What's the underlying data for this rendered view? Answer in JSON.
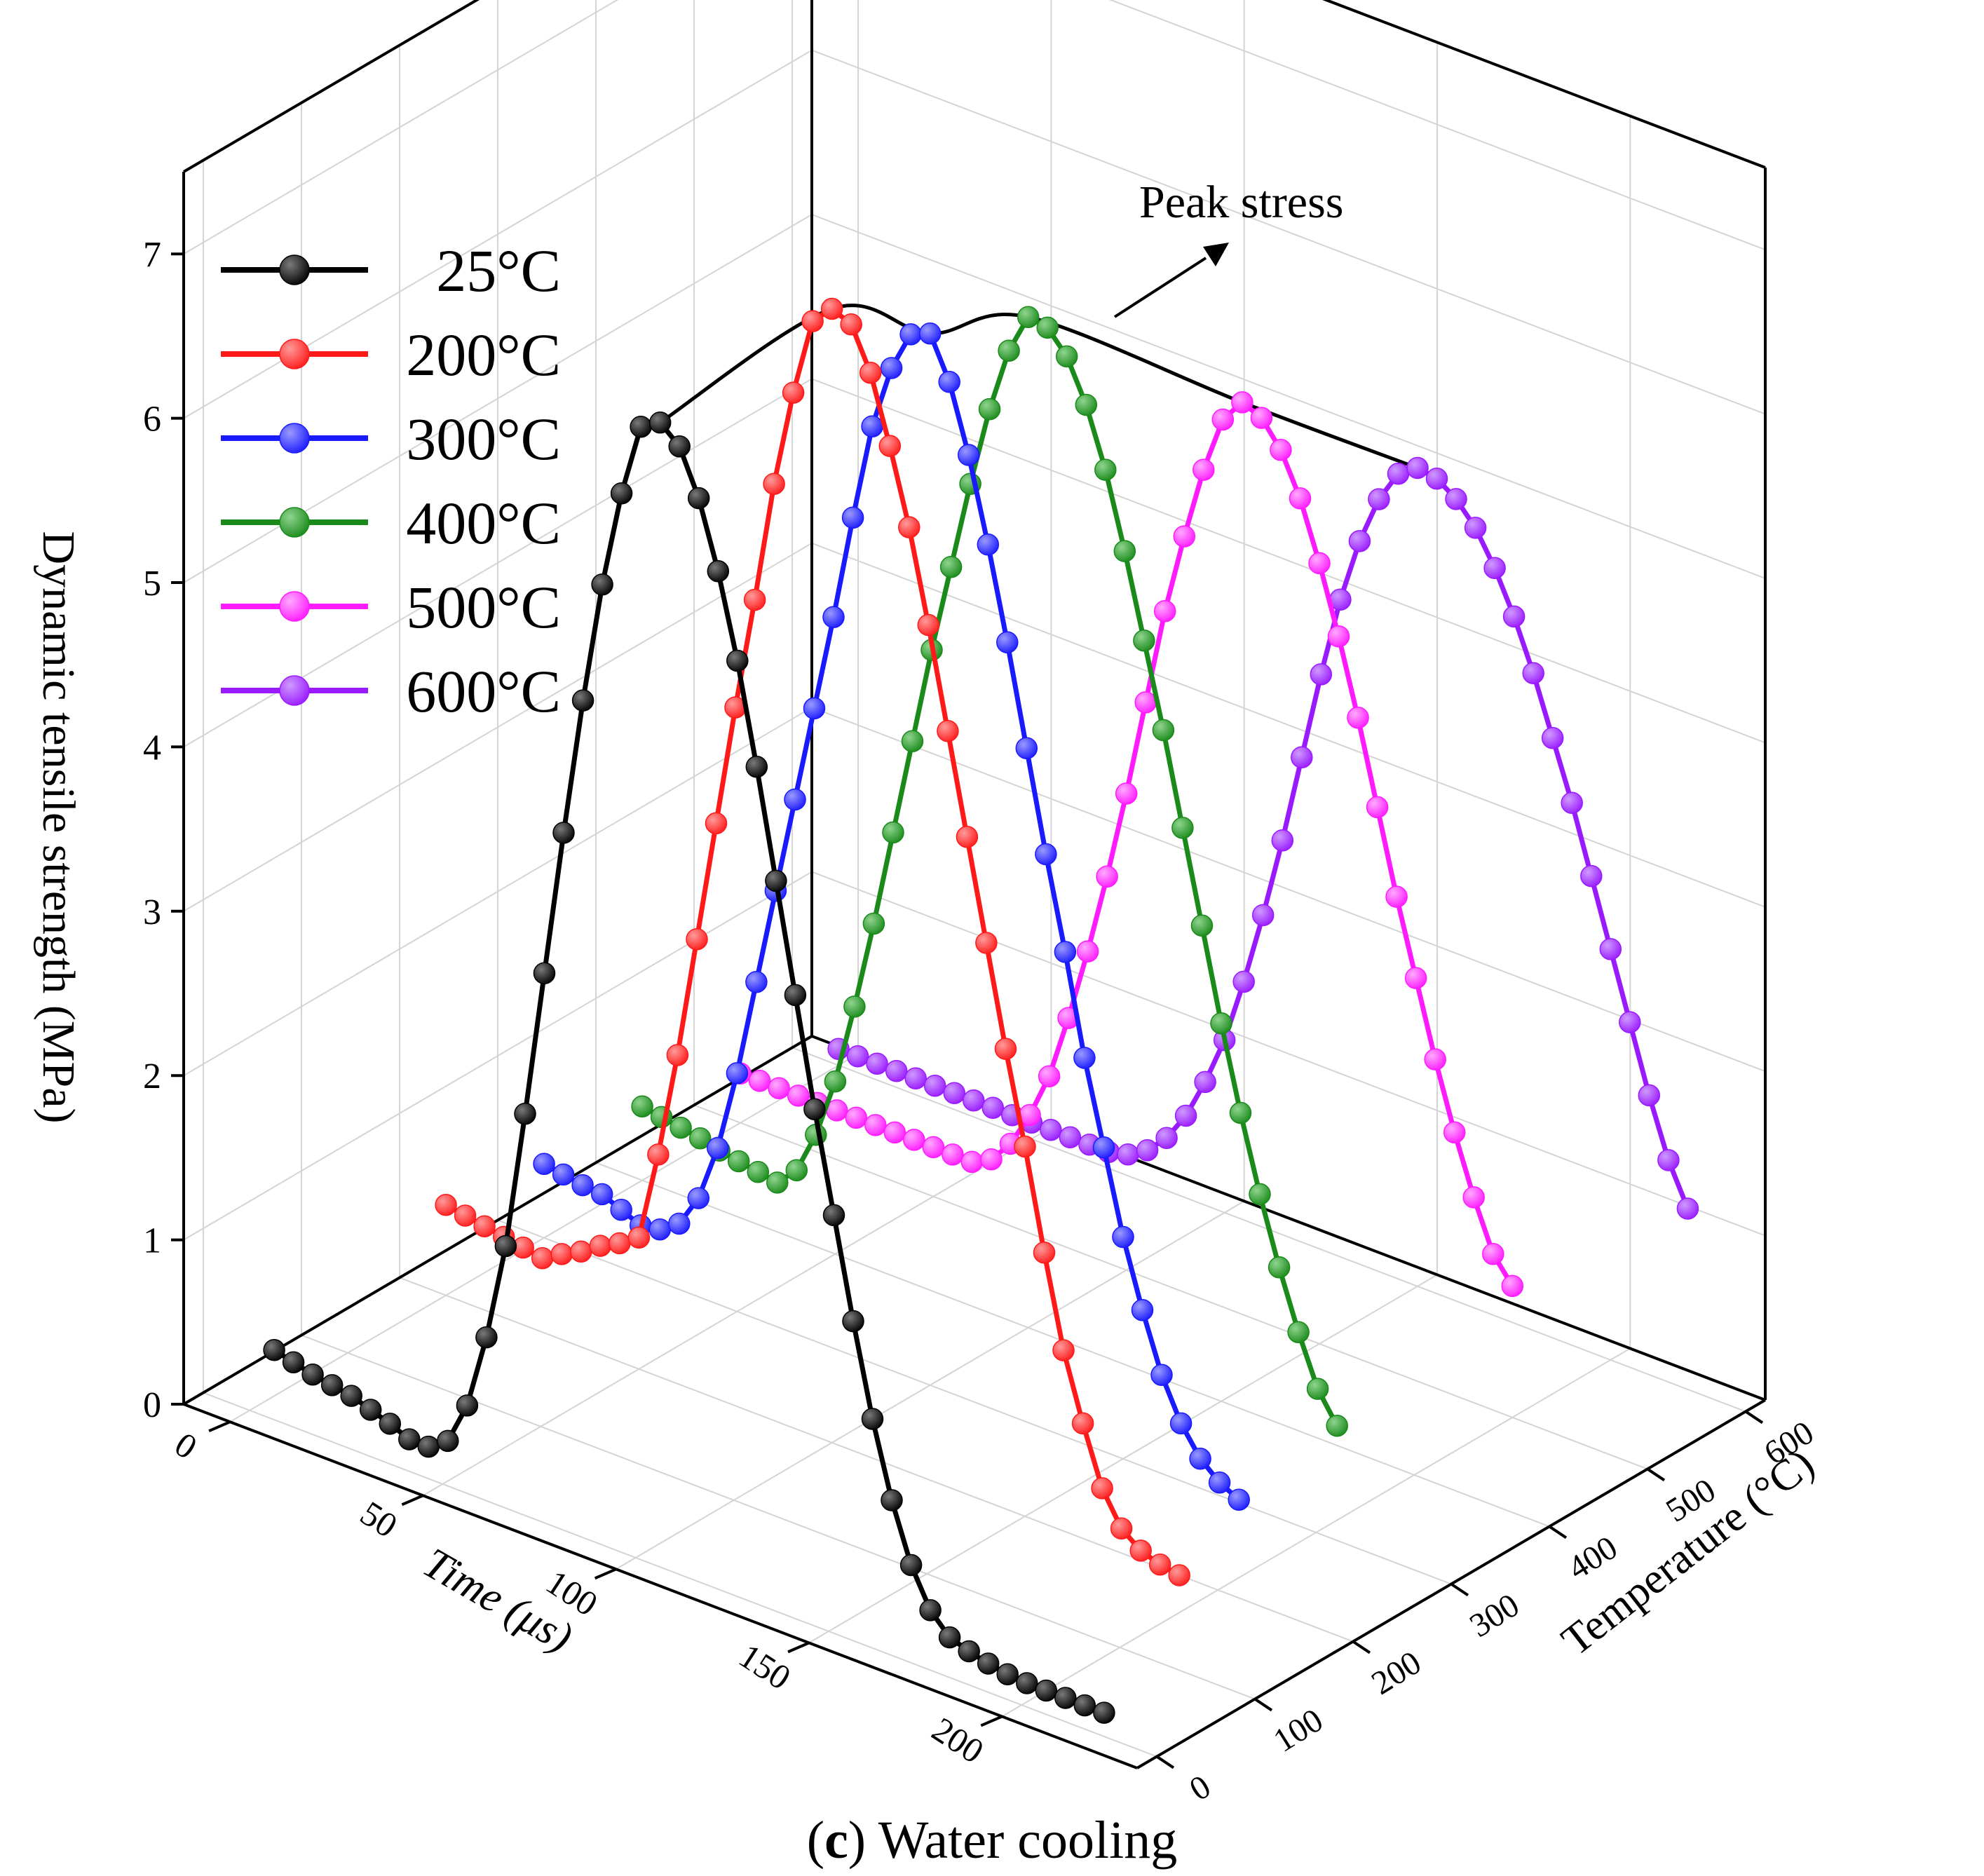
{
  "chart_data": {
    "type": "line",
    "projection": "3d",
    "title": "",
    "caption_prefix": "(",
    "caption_letter": "c",
    "caption_suffix": ") Water cooling",
    "xlabel": "Time (μs)",
    "ylabel": "Temperature (°C)",
    "zlabel": "Dynamic tensile strength (MPa)",
    "xlim": [
      -12,
      235
    ],
    "ylim": [
      -20,
      620
    ],
    "zlim": [
      0,
      7.5
    ],
    "x_ticks": [
      "0",
      "50",
      "100",
      "150",
      "200"
    ],
    "y_ticks": [
      "0",
      "100",
      "200",
      "300",
      "400",
      "500",
      "600"
    ],
    "z_ticks": [
      "0",
      "1",
      "2",
      "3",
      "4",
      "5",
      "6",
      "7"
    ],
    "legend_position": "top-left",
    "grid": true,
    "annotation": "Peak stress",
    "peak_stress_envelope": [
      {
        "temperature": 25,
        "value": 6.82
      },
      {
        "temperature": 200,
        "value": 6.9
      },
      {
        "temperature": 300,
        "value": 6.4
      },
      {
        "temperature": 400,
        "value": 6.15
      },
      {
        "temperature": 500,
        "value": 5.55
      },
      {
        "temperature": 600,
        "value": 4.98
      }
    ],
    "series": [
      {
        "name": "25°C",
        "temperature": 25,
        "color": "#000000",
        "highlight": "#7a7a7a",
        "x": [
          0,
          5,
          10,
          15,
          20,
          25,
          30,
          35,
          40,
          45,
          50,
          55,
          60,
          65,
          70,
          75,
          80,
          85,
          90,
          95,
          100,
          105,
          110,
          115,
          120,
          125,
          130,
          135,
          140,
          145,
          150,
          155,
          160,
          165,
          170,
          175,
          180,
          185,
          190,
          195,
          200,
          205,
          210,
          215
        ],
        "values": [
          0.28,
          0.25,
          0.22,
          0.2,
          0.18,
          0.14,
          0.1,
          0.05,
          0.05,
          0.13,
          0.39,
          0.85,
          1.45,
          2.3,
          3.2,
          4.1,
          4.95,
          5.7,
          6.3,
          6.75,
          6.82,
          6.72,
          6.45,
          6.05,
          5.55,
          4.95,
          4.3,
          3.65,
          3.0,
          2.4,
          1.8,
          1.25,
          0.8,
          0.45,
          0.22,
          0.1,
          0.06,
          0.03,
          0.01,
          0.0,
          0.0,
          0.0,
          0.0,
          0.0
        ]
      },
      {
        "name": "200°C",
        "temperature": 200,
        "color": "#ff1a1a",
        "highlight": "#ff9a9a",
        "x": [
          0,
          5,
          10,
          15,
          20,
          25,
          30,
          35,
          40,
          45,
          50,
          55,
          60,
          65,
          70,
          75,
          80,
          85,
          90,
          95,
          100,
          105,
          110,
          115,
          120,
          125,
          130,
          135,
          140,
          145,
          150,
          155,
          160,
          165,
          170,
          175,
          180,
          185,
          190
        ],
        "values": [
          0.55,
          0.53,
          0.51,
          0.49,
          0.47,
          0.45,
          0.52,
          0.58,
          0.66,
          0.72,
          0.8,
          1.35,
          2.0,
          2.75,
          3.5,
          4.25,
          4.95,
          5.7,
          6.3,
          6.78,
          6.9,
          6.85,
          6.6,
          6.2,
          5.75,
          5.2,
          4.6,
          4.0,
          3.4,
          2.8,
          2.25,
          1.65,
          1.1,
          0.7,
          0.35,
          0.15,
          0.06,
          0.02,
          0.0
        ]
      },
      {
        "name": "300°C",
        "temperature": 300,
        "color": "#1a1aff",
        "highlight": "#9a9aff",
        "x": [
          0,
          5,
          10,
          15,
          20,
          25,
          30,
          35,
          40,
          45,
          50,
          55,
          60,
          65,
          70,
          75,
          80,
          85,
          90,
          95,
          100,
          105,
          110,
          115,
          120,
          125,
          130,
          135,
          140,
          145,
          150,
          155,
          160,
          165,
          170,
          175,
          180
        ],
        "values": [
          0.45,
          0.43,
          0.41,
          0.4,
          0.35,
          0.3,
          0.32,
          0.4,
          0.6,
          0.95,
          1.45,
          2.05,
          2.65,
          3.25,
          3.85,
          4.45,
          5.1,
          5.7,
          6.1,
          6.35,
          6.4,
          6.15,
          5.75,
          5.25,
          4.7,
          4.1,
          3.5,
          2.95,
          2.35,
          1.85,
          1.35,
          0.95,
          0.6,
          0.35,
          0.18,
          0.08,
          0.02
        ]
      },
      {
        "name": "400°C",
        "temperature": 400,
        "color": "#1a8a1a",
        "highlight": "#8fd48f",
        "x": [
          0,
          5,
          10,
          15,
          20,
          25,
          30,
          35,
          40,
          45,
          50,
          55,
          60,
          65,
          70,
          75,
          80,
          85,
          90,
          95,
          100,
          105,
          110,
          115,
          120,
          125,
          130,
          135,
          140,
          145,
          150,
          155,
          160,
          165,
          170,
          175,
          180
        ],
        "values": [
          0.45,
          0.43,
          0.41,
          0.39,
          0.36,
          0.34,
          0.32,
          0.3,
          0.42,
          0.68,
          1.05,
          1.55,
          2.1,
          2.7,
          3.3,
          3.9,
          4.45,
          5.0,
          5.5,
          5.9,
          6.15,
          6.13,
          6.0,
          5.75,
          5.4,
          4.95,
          4.45,
          3.95,
          3.4,
          2.85,
          2.3,
          1.8,
          1.35,
          0.95,
          0.6,
          0.3,
          0.12
        ]
      },
      {
        "name": "500°C",
        "temperature": 500,
        "color": "#ff1aff",
        "highlight": "#ffaaff",
        "x": [
          0,
          5,
          10,
          15,
          20,
          25,
          30,
          35,
          40,
          45,
          50,
          55,
          60,
          65,
          70,
          75,
          80,
          85,
          90,
          95,
          100,
          105,
          110,
          115,
          120,
          125,
          130,
          135,
          140,
          145,
          150,
          155,
          160,
          165,
          170,
          175,
          180,
          185,
          190,
          195,
          200
        ],
        "values": [
          0.3,
          0.3,
          0.3,
          0.3,
          0.3,
          0.3,
          0.3,
          0.3,
          0.3,
          0.3,
          0.3,
          0.3,
          0.3,
          0.36,
          0.5,
          0.72,
          1.0,
          1.4,
          1.85,
          2.35,
          2.9,
          3.5,
          4.1,
          4.6,
          5.05,
          5.4,
          5.55,
          5.5,
          5.35,
          5.1,
          4.75,
          4.35,
          3.9,
          3.4,
          2.9,
          2.45,
          2.0,
          1.6,
          1.25,
          0.95,
          0.8
        ]
      },
      {
        "name": "600°C",
        "temperature": 600,
        "color": "#9a1aff",
        "highlight": "#cf9aff",
        "x": [
          0,
          5,
          10,
          15,
          20,
          25,
          30,
          35,
          40,
          45,
          50,
          55,
          60,
          65,
          70,
          75,
          80,
          85,
          90,
          95,
          100,
          105,
          110,
          115,
          120,
          125,
          130,
          135,
          140,
          145,
          150,
          155,
          160,
          165,
          170,
          175,
          180,
          185,
          190,
          195,
          200,
          205,
          210,
          215,
          220
        ],
        "values": [
          0.1,
          0.1,
          0.1,
          0.1,
          0.1,
          0.1,
          0.1,
          0.1,
          0.1,
          0.1,
          0.1,
          0.1,
          0.1,
          0.1,
          0.1,
          0.13,
          0.2,
          0.32,
          0.5,
          0.75,
          1.05,
          1.45,
          1.9,
          2.4,
          2.95,
          3.5,
          4.0,
          4.4,
          4.7,
          4.9,
          4.98,
          4.96,
          4.88,
          4.75,
          4.55,
          4.3,
          4.0,
          3.65,
          3.3,
          2.9,
          2.5,
          2.1,
          1.7,
          1.35,
          1.1
        ]
      }
    ]
  }
}
